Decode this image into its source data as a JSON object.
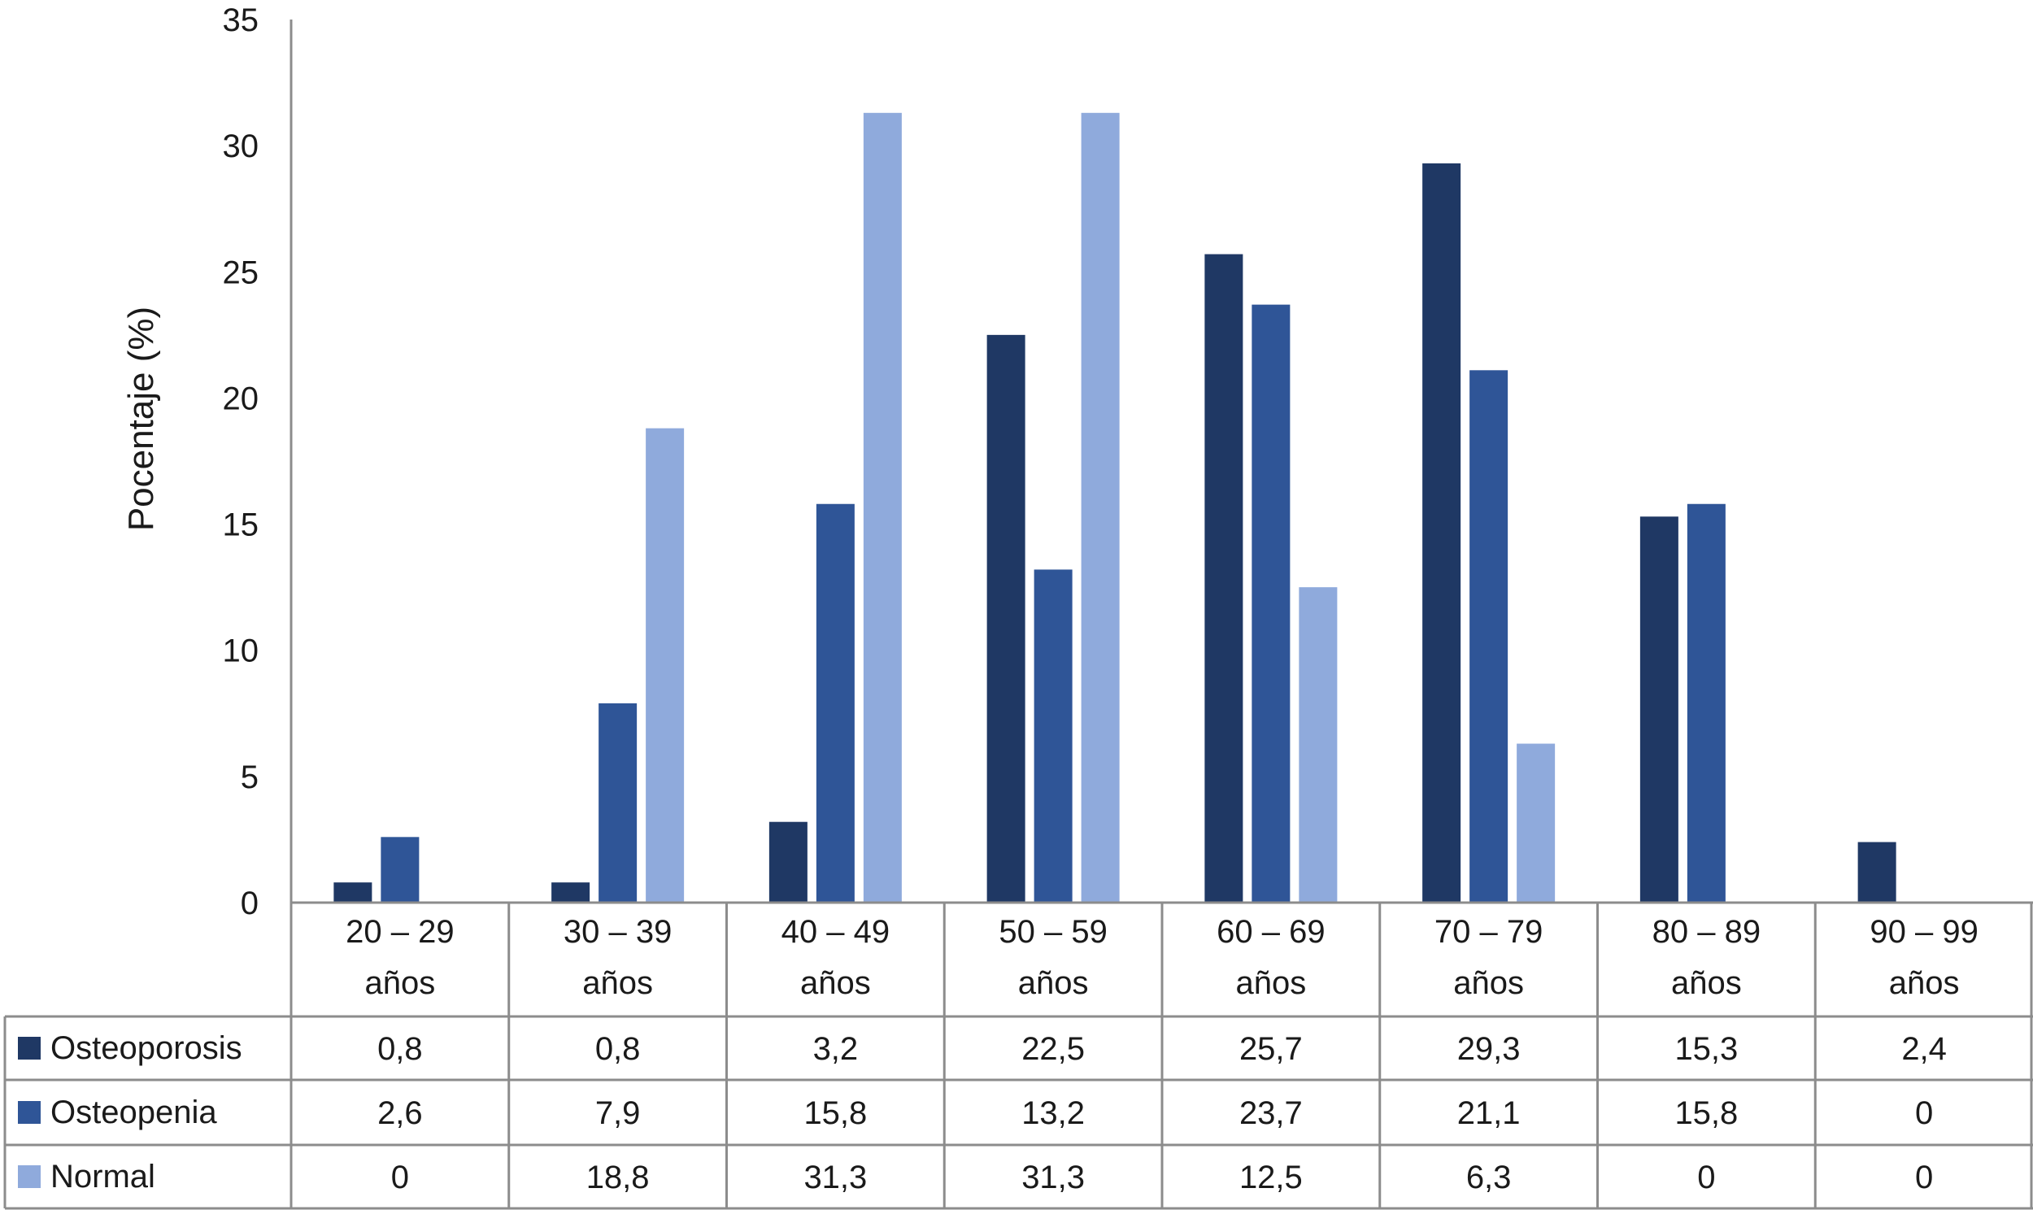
{
  "chart_data": {
    "type": "bar",
    "title": "",
    "xlabel": "",
    "ylabel": "Pocentaje (%)",
    "ylim": [
      0,
      35
    ],
    "yticks": [
      0,
      5,
      10,
      15,
      20,
      25,
      30,
      35
    ],
    "grid": false,
    "legend": "in data table rows (left)",
    "categories": [
      [
        "20 – 29",
        "años"
      ],
      [
        "30 – 39",
        "años"
      ],
      [
        "40 – 49",
        "años"
      ],
      [
        "50 – 59",
        "años"
      ],
      [
        "60 – 69",
        "años"
      ],
      [
        "70 – 79",
        "años"
      ],
      [
        "80 – 89",
        "años"
      ],
      [
        "90 – 99",
        "años"
      ]
    ],
    "series": [
      {
        "name": "Osteoporosis",
        "color": "#1f3864",
        "values": [
          0.8,
          0.8,
          3.2,
          22.5,
          25.7,
          29.3,
          15.3,
          2.4
        ],
        "labels": [
          "0,8",
          "0,8",
          "3,2",
          "22,5",
          "25,7",
          "29,3",
          "15,3",
          "2,4"
        ]
      },
      {
        "name": "Osteopenia",
        "color": "#2f5597",
        "values": [
          2.6,
          7.9,
          15.8,
          13.2,
          23.7,
          21.1,
          15.8,
          0
        ],
        "labels": [
          "2,6",
          "7,9",
          "15,8",
          "13,2",
          "23,7",
          "21,1",
          "15,8",
          "0"
        ]
      },
      {
        "name": "Normal",
        "color": "#8faadc",
        "values": [
          0,
          18.8,
          31.3,
          31.3,
          12.5,
          6.3,
          0,
          0
        ],
        "labels": [
          "0",
          "18,8",
          "31,3",
          "31,3",
          "12,5",
          "6,3",
          "0",
          "0"
        ]
      }
    ]
  }
}
